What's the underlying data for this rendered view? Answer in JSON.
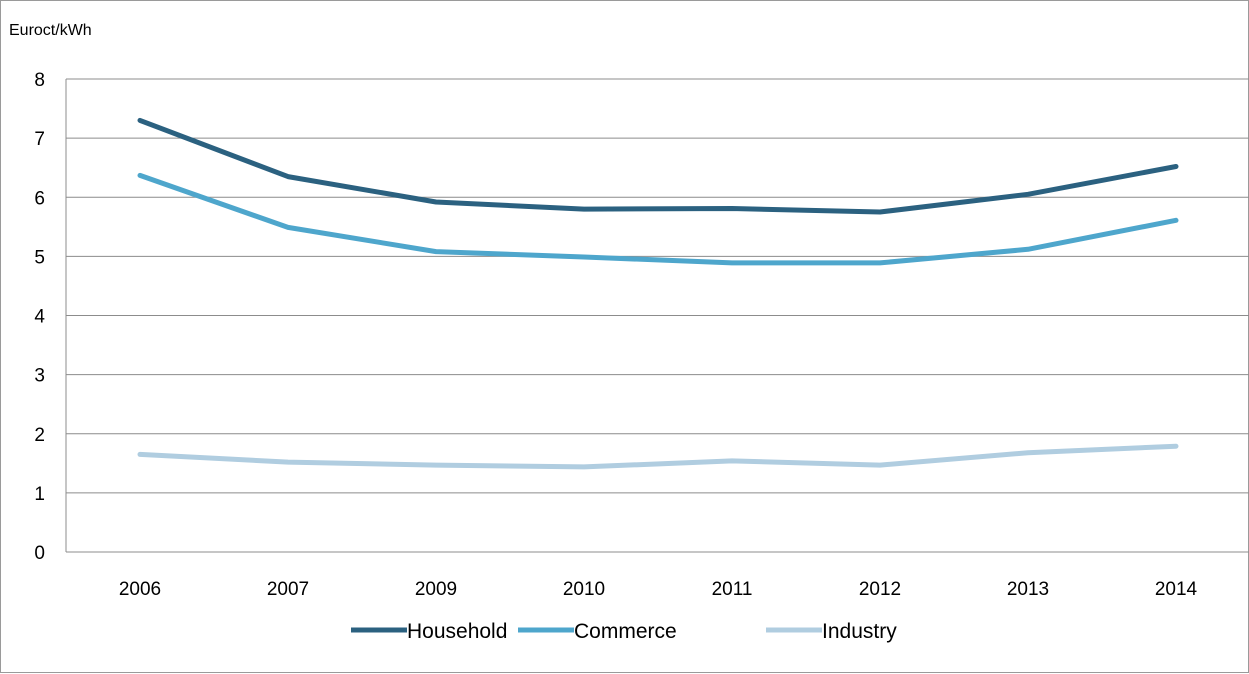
{
  "chart_data": {
    "type": "line",
    "unit_label": "Euroct/kWh",
    "categories": [
      "2006",
      "2007",
      "2009",
      "2010",
      "2011",
      "2012",
      "2013",
      "2014"
    ],
    "ylim": [
      0,
      8
    ],
    "yticks": [
      0,
      1,
      2,
      3,
      4,
      5,
      6,
      7,
      8
    ],
    "grid": true,
    "legend_position": "bottom",
    "series": [
      {
        "name": "Household",
        "color": "#2b6180",
        "values": [
          7.3,
          6.35,
          5.92,
          5.8,
          5.81,
          5.75,
          6.05,
          6.52
        ]
      },
      {
        "name": "Commerce",
        "color": "#4ea6cc",
        "values": [
          6.37,
          5.49,
          5.08,
          4.99,
          4.89,
          4.89,
          5.12,
          5.61
        ]
      },
      {
        "name": "Industry",
        "color": "#b0cde0",
        "values": [
          1.65,
          1.52,
          1.47,
          1.44,
          1.54,
          1.47,
          1.68,
          1.79
        ]
      }
    ]
  }
}
